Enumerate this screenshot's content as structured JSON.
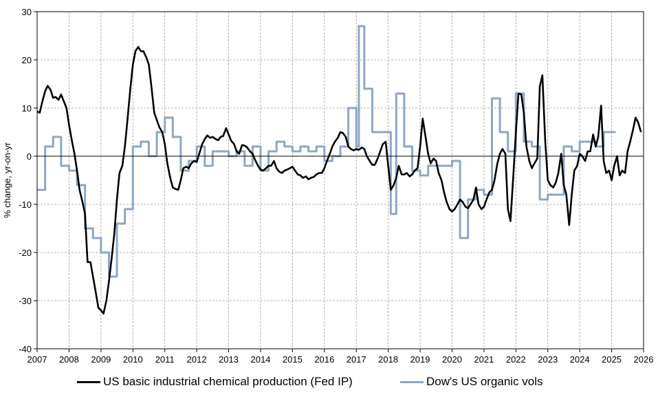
{
  "chart_data": {
    "type": "line",
    "ylabel": "% change, yr-on-yr",
    "xlabel": "",
    "xlim": [
      2007,
      2026
    ],
    "ylim": [
      -40,
      30
    ],
    "x_ticks": [
      "2007",
      "2008",
      "2009",
      "2010",
      "2011",
      "2012",
      "2013",
      "2014",
      "2015",
      "2016",
      "2017",
      "2018",
      "2019",
      "2020",
      "2021",
      "2022",
      "2023",
      "2024",
      "2025",
      "2026"
    ],
    "y_ticks": [
      "-40",
      "-30",
      "-20",
      "-10",
      "0",
      "10",
      "20",
      "30"
    ],
    "grid": true,
    "legend_position": "bottom",
    "series": [
      {
        "name": "US basic industrial chemical production (Fed IP)",
        "color": "#000000",
        "step": false,
        "points": [
          [
            2007.0,
            9.3
          ],
          [
            2007.08,
            9.0
          ],
          [
            2007.17,
            11.5
          ],
          [
            2007.25,
            13.5
          ],
          [
            2007.33,
            14.6
          ],
          [
            2007.42,
            13.8
          ],
          [
            2007.5,
            12.1
          ],
          [
            2007.58,
            12.3
          ],
          [
            2007.67,
            11.7
          ],
          [
            2007.75,
            12.8
          ],
          [
            2007.83,
            11.5
          ],
          [
            2007.92,
            10.0
          ],
          [
            2008.0,
            6.5
          ],
          [
            2008.08,
            3.5
          ],
          [
            2008.17,
            0.5
          ],
          [
            2008.25,
            -3.0
          ],
          [
            2008.33,
            -7.0
          ],
          [
            2008.42,
            -9.5
          ],
          [
            2008.5,
            -12.0
          ],
          [
            2008.58,
            -22.0
          ],
          [
            2008.67,
            -22.0
          ],
          [
            2008.75,
            -25.0
          ],
          [
            2008.83,
            -28.0
          ],
          [
            2008.92,
            -31.5
          ],
          [
            2009.0,
            -32.0
          ],
          [
            2009.08,
            -32.7
          ],
          [
            2009.17,
            -30.0
          ],
          [
            2009.25,
            -26.0
          ],
          [
            2009.33,
            -21.5
          ],
          [
            2009.42,
            -16.0
          ],
          [
            2009.5,
            -9.0
          ],
          [
            2009.58,
            -3.5
          ],
          [
            2009.67,
            -2.0
          ],
          [
            2009.75,
            2.0
          ],
          [
            2009.83,
            7.5
          ],
          [
            2009.92,
            14.0
          ],
          [
            2010.0,
            19.0
          ],
          [
            2010.08,
            21.8
          ],
          [
            2010.17,
            22.7
          ],
          [
            2010.25,
            21.8
          ],
          [
            2010.33,
            21.8
          ],
          [
            2010.42,
            20.5
          ],
          [
            2010.5,
            19.0
          ],
          [
            2010.58,
            14.5
          ],
          [
            2010.67,
            9.0
          ],
          [
            2010.75,
            7.5
          ],
          [
            2010.83,
            6.0
          ],
          [
            2010.92,
            5.0
          ],
          [
            2011.0,
            2.5
          ],
          [
            2011.08,
            -1.5
          ],
          [
            2011.17,
            -4.5
          ],
          [
            2011.25,
            -6.5
          ],
          [
            2011.33,
            -6.8
          ],
          [
            2011.42,
            -7.0
          ],
          [
            2011.5,
            -5.0
          ],
          [
            2011.58,
            -2.5
          ],
          [
            2011.67,
            -2.2
          ],
          [
            2011.75,
            -2.5
          ],
          [
            2011.83,
            -1.5
          ],
          [
            2011.92,
            -1.0
          ],
          [
            2012.0,
            -1.2
          ],
          [
            2012.08,
            0.5
          ],
          [
            2012.17,
            2.5
          ],
          [
            2012.25,
            3.5
          ],
          [
            2012.33,
            4.3
          ],
          [
            2012.42,
            3.8
          ],
          [
            2012.5,
            4.0
          ],
          [
            2012.58,
            3.6
          ],
          [
            2012.67,
            3.3
          ],
          [
            2012.75,
            4.0
          ],
          [
            2012.83,
            4.2
          ],
          [
            2012.92,
            5.8
          ],
          [
            2013.0,
            4.5
          ],
          [
            2013.08,
            3.2
          ],
          [
            2013.17,
            2.5
          ],
          [
            2013.25,
            1.0
          ],
          [
            2013.33,
            0.5
          ],
          [
            2013.42,
            2.3
          ],
          [
            2013.5,
            2.2
          ],
          [
            2013.58,
            1.8
          ],
          [
            2013.67,
            1.0
          ],
          [
            2013.75,
            0.5
          ],
          [
            2013.83,
            -0.8
          ],
          [
            2013.92,
            -2.0
          ],
          [
            2014.0,
            -2.8
          ],
          [
            2014.08,
            -3.0
          ],
          [
            2014.17,
            -2.5
          ],
          [
            2014.25,
            -2.0
          ],
          [
            2014.33,
            -2.0
          ],
          [
            2014.42,
            -1.0
          ],
          [
            2014.5,
            -2.5
          ],
          [
            2014.58,
            -3.2
          ],
          [
            2014.67,
            -3.5
          ],
          [
            2014.75,
            -3.0
          ],
          [
            2014.83,
            -2.8
          ],
          [
            2014.92,
            -2.5
          ],
          [
            2015.0,
            -2.2
          ],
          [
            2015.08,
            -3.0
          ],
          [
            2015.17,
            -3.8
          ],
          [
            2015.25,
            -4.0
          ],
          [
            2015.33,
            -4.5
          ],
          [
            2015.42,
            -4.2
          ],
          [
            2015.5,
            -4.8
          ],
          [
            2015.58,
            -4.5
          ],
          [
            2015.67,
            -4.3
          ],
          [
            2015.75,
            -3.8
          ],
          [
            2015.83,
            -3.5
          ],
          [
            2015.92,
            -3.5
          ],
          [
            2016.0,
            -2.5
          ],
          [
            2016.08,
            -1.0
          ],
          [
            2016.17,
            0.5
          ],
          [
            2016.25,
            2.0
          ],
          [
            2016.33,
            3.0
          ],
          [
            2016.42,
            3.8
          ],
          [
            2016.5,
            5.0
          ],
          [
            2016.58,
            4.8
          ],
          [
            2016.67,
            4.0
          ],
          [
            2016.75,
            2.0
          ],
          [
            2016.83,
            1.5
          ],
          [
            2016.92,
            1.2
          ],
          [
            2017.0,
            1.5
          ],
          [
            2017.08,
            1.3
          ],
          [
            2017.17,
            1.8
          ],
          [
            2017.25,
            1.5
          ],
          [
            2017.33,
            0.0
          ],
          [
            2017.42,
            -1.0
          ],
          [
            2017.5,
            -1.8
          ],
          [
            2017.58,
            -1.8
          ],
          [
            2017.67,
            -0.5
          ],
          [
            2017.75,
            1.0
          ],
          [
            2017.83,
            2.5
          ],
          [
            2017.92,
            3.0
          ],
          [
            2018.0,
            -2.0
          ],
          [
            2018.08,
            -7.0
          ],
          [
            2018.17,
            -6.0
          ],
          [
            2018.25,
            -4.5
          ],
          [
            2018.33,
            -2.0
          ],
          [
            2018.42,
            -3.8
          ],
          [
            2018.5,
            -3.8
          ],
          [
            2018.58,
            -3.5
          ],
          [
            2018.67,
            -4.2
          ],
          [
            2018.75,
            -3.8
          ],
          [
            2018.83,
            -3.0
          ],
          [
            2018.92,
            -2.5
          ],
          [
            2019.0,
            2.0
          ],
          [
            2019.08,
            7.8
          ],
          [
            2019.17,
            4.0
          ],
          [
            2019.25,
            0.5
          ],
          [
            2019.33,
            -1.5
          ],
          [
            2019.42,
            -0.5
          ],
          [
            2019.5,
            -1.0
          ],
          [
            2019.58,
            -3.5
          ],
          [
            2019.67,
            -5.0
          ],
          [
            2019.75,
            -7.5
          ],
          [
            2019.83,
            -9.5
          ],
          [
            2019.92,
            -11.0
          ],
          [
            2020.0,
            -11.5
          ],
          [
            2020.08,
            -11.0
          ],
          [
            2020.17,
            -10.0
          ],
          [
            2020.25,
            -9.0
          ],
          [
            2020.33,
            -9.5
          ],
          [
            2020.42,
            -10.5
          ],
          [
            2020.5,
            -10.8
          ],
          [
            2020.58,
            -10.0
          ],
          [
            2020.67,
            -9.0
          ],
          [
            2020.75,
            -6.5
          ],
          [
            2020.83,
            -10.0
          ],
          [
            2020.92,
            -11.0
          ],
          [
            2021.0,
            -10.5
          ],
          [
            2021.08,
            -9.0
          ],
          [
            2021.17,
            -7.5
          ],
          [
            2021.25,
            -7.0
          ],
          [
            2021.33,
            -5.0
          ],
          [
            2021.42,
            -1.5
          ],
          [
            2021.5,
            0.5
          ],
          [
            2021.58,
            1.5
          ],
          [
            2021.67,
            0.5
          ],
          [
            2021.75,
            -11.0
          ],
          [
            2021.83,
            -13.5
          ],
          [
            2021.92,
            -4.0
          ],
          [
            2022.0,
            5.0
          ],
          [
            2022.08,
            13.0
          ],
          [
            2022.17,
            12.8
          ],
          [
            2022.25,
            9.0
          ],
          [
            2022.33,
            2.0
          ],
          [
            2022.42,
            -1.0
          ],
          [
            2022.5,
            -2.5
          ],
          [
            2022.58,
            -1.5
          ],
          [
            2022.67,
            -0.5
          ],
          [
            2022.75,
            14.5
          ],
          [
            2022.83,
            16.8
          ],
          [
            2022.92,
            3.0
          ],
          [
            2023.0,
            -5.0
          ],
          [
            2023.08,
            -6.0
          ],
          [
            2023.17,
            -6.5
          ],
          [
            2023.25,
            -5.5
          ],
          [
            2023.33,
            -3.5
          ],
          [
            2023.42,
            0.5
          ],
          [
            2023.5,
            -6.0
          ],
          [
            2023.58,
            -8.0
          ],
          [
            2023.67,
            -14.3
          ],
          [
            2023.75,
            -8.0
          ],
          [
            2023.83,
            -3.0
          ],
          [
            2023.92,
            -2.0
          ],
          [
            2024.0,
            0.5
          ],
          [
            2024.08,
            0.0
          ],
          [
            2024.17,
            -1.0
          ],
          [
            2024.25,
            1.0
          ],
          [
            2024.33,
            1.0
          ],
          [
            2024.42,
            4.5
          ],
          [
            2024.5,
            2.0
          ],
          [
            2024.58,
            4.0
          ],
          [
            2024.67,
            10.5
          ],
          [
            2024.75,
            -1.0
          ],
          [
            2024.83,
            -3.5
          ],
          [
            2024.92,
            -3.0
          ],
          [
            2025.0,
            -5.0
          ],
          [
            2025.08,
            -2.0
          ],
          [
            2025.17,
            0.0
          ],
          [
            2025.25,
            -4.0
          ],
          [
            2025.33,
            -3.0
          ],
          [
            2025.42,
            -3.5
          ],
          [
            2025.5,
            1.0
          ],
          [
            2025.58,
            3.0
          ],
          [
            2025.67,
            5.5
          ],
          [
            2025.75,
            8.0
          ],
          [
            2025.83,
            7.0
          ],
          [
            2025.92,
            5.0
          ]
        ]
      },
      {
        "name": "Dow's US organic vols",
        "color": "#8EA6C4",
        "step": true,
        "points": [
          [
            2007.0,
            -7
          ],
          [
            2007.25,
            2
          ],
          [
            2007.5,
            4
          ],
          [
            2007.75,
            -2
          ],
          [
            2008.0,
            -3
          ],
          [
            2008.25,
            -6
          ],
          [
            2008.5,
            -15
          ],
          [
            2008.75,
            -17
          ],
          [
            2009.0,
            -20
          ],
          [
            2009.25,
            -25
          ],
          [
            2009.5,
            -14
          ],
          [
            2009.75,
            -11
          ],
          [
            2010.0,
            2
          ],
          [
            2010.25,
            3
          ],
          [
            2010.5,
            0
          ],
          [
            2010.75,
            5
          ],
          [
            2011.0,
            8
          ],
          [
            2011.25,
            4
          ],
          [
            2011.5,
            -3
          ],
          [
            2011.75,
            -1
          ],
          [
            2012.0,
            2
          ],
          [
            2012.25,
            -2
          ],
          [
            2012.5,
            1
          ],
          [
            2012.75,
            1
          ],
          [
            2013.0,
            0
          ],
          [
            2013.25,
            1
          ],
          [
            2013.5,
            -2
          ],
          [
            2013.75,
            2
          ],
          [
            2014.0,
            -3
          ],
          [
            2014.25,
            1
          ],
          [
            2014.5,
            3
          ],
          [
            2014.75,
            2
          ],
          [
            2015.0,
            1
          ],
          [
            2015.25,
            2
          ],
          [
            2015.5,
            1
          ],
          [
            2015.75,
            2
          ],
          [
            2016.0,
            -1
          ],
          [
            2016.25,
            0
          ],
          [
            2016.5,
            2
          ],
          [
            2016.75,
            10
          ],
          [
            2017.0,
            2
          ],
          [
            2017.08,
            27
          ],
          [
            2017.25,
            14
          ],
          [
            2017.5,
            5
          ],
          [
            2017.75,
            5
          ],
          [
            2018.0,
            5
          ],
          [
            2018.08,
            -12
          ],
          [
            2018.25,
            13
          ],
          [
            2018.5,
            2
          ],
          [
            2018.75,
            -3
          ],
          [
            2019.0,
            -4
          ],
          [
            2019.25,
            -2
          ],
          [
            2019.5,
            -2
          ],
          [
            2019.75,
            -2
          ],
          [
            2020.0,
            -1
          ],
          [
            2020.25,
            -17
          ],
          [
            2020.5,
            -9
          ],
          [
            2020.75,
            -7
          ],
          [
            2021.0,
            -8
          ],
          [
            2021.25,
            12
          ],
          [
            2021.5,
            5
          ],
          [
            2021.75,
            1
          ],
          [
            2022.0,
            13
          ],
          [
            2022.25,
            3
          ],
          [
            2022.5,
            2
          ],
          [
            2022.75,
            -9
          ],
          [
            2023.0,
            -8
          ],
          [
            2023.25,
            -8
          ],
          [
            2023.5,
            2
          ],
          [
            2023.75,
            1
          ],
          [
            2024.0,
            3
          ],
          [
            2024.25,
            3
          ],
          [
            2024.5,
            2
          ],
          [
            2024.75,
            5
          ],
          [
            2025.0,
            5
          ]
        ]
      }
    ]
  }
}
